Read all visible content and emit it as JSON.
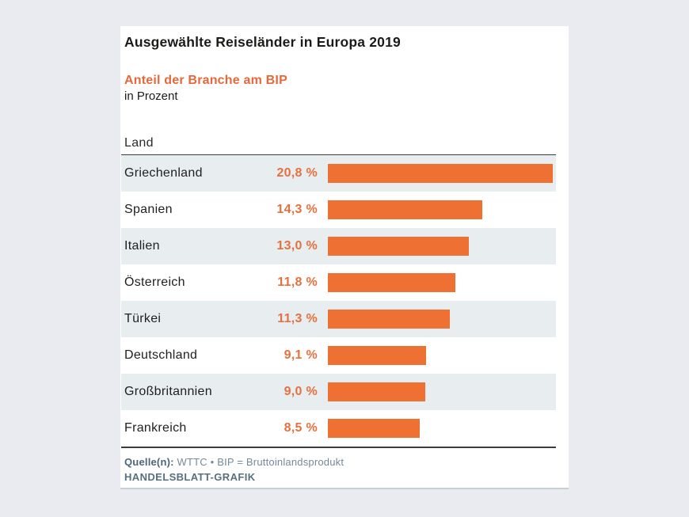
{
  "chart_data": {
    "type": "bar",
    "orientation": "horizontal",
    "title": "Ausgewählte Reiseländer in Europa 2019",
    "subtitle": "Anteil der Branche am BIP",
    "unit_label": "in Prozent",
    "column_header": "Land",
    "categories": [
      "Griechenland",
      "Spanien",
      "Italien",
      "Österreich",
      "Türkei",
      "Deutschland",
      "Großbritannien",
      "Frankreich"
    ],
    "values": [
      20.8,
      14.3,
      13.0,
      11.8,
      11.3,
      9.1,
      9.0,
      8.5
    ],
    "value_labels": [
      "20,8 %",
      "14,3 %",
      "13,0 %",
      "11,8 %",
      "11,3 %",
      "9,1 %",
      "9,0 %",
      "8,5 %"
    ],
    "xlim": [
      0,
      20.8
    ],
    "grid": false,
    "legend": false,
    "bar_color": "#ee7032",
    "stripe_color": "#e8edf0"
  },
  "footer": {
    "source_label": "Quelle(n):",
    "source_text": " WTTC • BIP = Bruttoinlandsprodukt",
    "credit": "HANDELSBLATT-GRAFIK"
  },
  "colors": {
    "page_background": "#e9ebf0",
    "panel_background": "#ffffff",
    "accent_orange": "#ee7032",
    "title_text": "#1b1b19",
    "footer_text": "#76899a"
  }
}
